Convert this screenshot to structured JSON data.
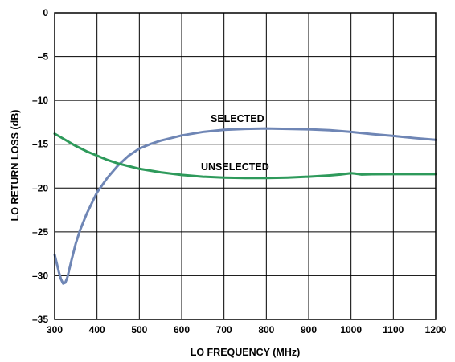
{
  "chart_data": {
    "type": "line",
    "xlabel": "LO FREQUENCY (MHz)",
    "ylabel": "LO RETURN LOSS (dB)",
    "xlim": [
      300,
      1200
    ],
    "ylim": [
      -35,
      0
    ],
    "x_ticks": [
      "300",
      "400",
      "500",
      "600",
      "700",
      "800",
      "900",
      "1000",
      "1100",
      "1200"
    ],
    "y_ticks": [
      "0",
      "–5",
      "–10",
      "–15",
      "–20",
      "–25",
      "–30",
      "–35"
    ],
    "grid": true,
    "annotations": [
      {
        "text": "SELECTED",
        "series": "selected"
      },
      {
        "text": "UNSELECTED",
        "series": "unselected"
      }
    ],
    "series": [
      {
        "key": "selected",
        "color": "#6f86b5",
        "points": [
          [
            300,
            -27.6
          ],
          [
            305,
            -28.6
          ],
          [
            310,
            -29.6
          ],
          [
            315,
            -30.4
          ],
          [
            320,
            -30.9
          ],
          [
            325,
            -30.8
          ],
          [
            330,
            -30.2
          ],
          [
            340,
            -28.2
          ],
          [
            350,
            -26.3
          ],
          [
            360,
            -24.8
          ],
          [
            375,
            -23.0
          ],
          [
            390,
            -21.5
          ],
          [
            400,
            -20.5
          ],
          [
            425,
            -18.8
          ],
          [
            450,
            -17.4
          ],
          [
            475,
            -16.3
          ],
          [
            500,
            -15.5
          ],
          [
            525,
            -15.0
          ],
          [
            550,
            -14.6
          ],
          [
            600,
            -14.0
          ],
          [
            650,
            -13.6
          ],
          [
            700,
            -13.35
          ],
          [
            750,
            -13.25
          ],
          [
            800,
            -13.2
          ],
          [
            850,
            -13.25
          ],
          [
            900,
            -13.3
          ],
          [
            950,
            -13.4
          ],
          [
            1000,
            -13.6
          ],
          [
            1050,
            -13.85
          ],
          [
            1100,
            -14.05
          ],
          [
            1150,
            -14.3
          ],
          [
            1200,
            -14.5
          ]
        ]
      },
      {
        "key": "unselected",
        "color": "#2e9a5b",
        "points": [
          [
            300,
            -13.8
          ],
          [
            325,
            -14.5
          ],
          [
            350,
            -15.2
          ],
          [
            375,
            -15.8
          ],
          [
            400,
            -16.3
          ],
          [
            425,
            -16.8
          ],
          [
            450,
            -17.2
          ],
          [
            475,
            -17.5
          ],
          [
            500,
            -17.8
          ],
          [
            550,
            -18.2
          ],
          [
            600,
            -18.5
          ],
          [
            650,
            -18.7
          ],
          [
            700,
            -18.8
          ],
          [
            750,
            -18.85
          ],
          [
            800,
            -18.85
          ],
          [
            850,
            -18.8
          ],
          [
            900,
            -18.7
          ],
          [
            950,
            -18.55
          ],
          [
            975,
            -18.45
          ],
          [
            1000,
            -18.3
          ],
          [
            1010,
            -18.35
          ],
          [
            1025,
            -18.45
          ],
          [
            1050,
            -18.42
          ],
          [
            1100,
            -18.4
          ],
          [
            1150,
            -18.4
          ],
          [
            1200,
            -18.4
          ]
        ]
      }
    ]
  }
}
